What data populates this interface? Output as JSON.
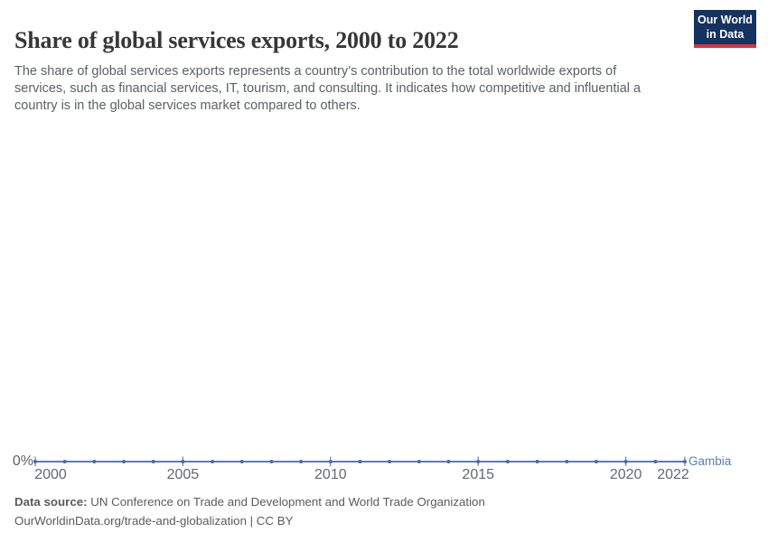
{
  "header": {
    "title": "Share of global services exports, 2000 to 2022",
    "logo": {
      "line1": "Our World",
      "line2": "in Data",
      "bg_color": "#153360",
      "stripe_color": "#d1353c"
    }
  },
  "subtitle": "The share of global services exports represents a country’s contribution to the total worldwide exports of services, such as financial services, IT, tourism, and consulting. It indicates how competitive and influential a country is in the global services market compared to others.",
  "chart_data": {
    "type": "line",
    "title": "Share of global services exports, 2000 to 2022",
    "x": [
      2000,
      2001,
      2002,
      2003,
      2004,
      2005,
      2006,
      2007,
      2008,
      2009,
      2010,
      2011,
      2012,
      2013,
      2014,
      2015,
      2016,
      2017,
      2018,
      2019,
      2020,
      2021,
      2022
    ],
    "series": [
      {
        "name": "Gambia",
        "color": "#5d7cb5",
        "values": [
          0,
          0,
          0,
          0,
          0,
          0,
          0,
          0,
          0,
          0,
          0,
          0,
          0,
          0,
          0,
          0,
          0,
          0,
          0,
          0,
          0,
          0,
          0
        ]
      }
    ],
    "xlabel": "",
    "ylabel": "",
    "y_tick_labels": [
      "0%"
    ],
    "x_tick_labels": [
      "2000",
      "2005",
      "2010",
      "2015",
      "2020",
      "2022"
    ],
    "grid": false,
    "legend_position": "line-end",
    "markers": "dot-per-year",
    "colors": {
      "line": "#5d7cb5",
      "dot": "#4a6aa6",
      "tick": "#7b90b8",
      "entity_label": "#5e7cb2"
    }
  },
  "axis": {
    "y_zero_label": "0%",
    "entity_label": "Gambia"
  },
  "footer": {
    "source_label": "Data source:",
    "source_text": " UN Conference on Trade and Development and World Trade Organization",
    "attribution": "OurWorldinData.org/trade-and-globalization | CC BY"
  }
}
